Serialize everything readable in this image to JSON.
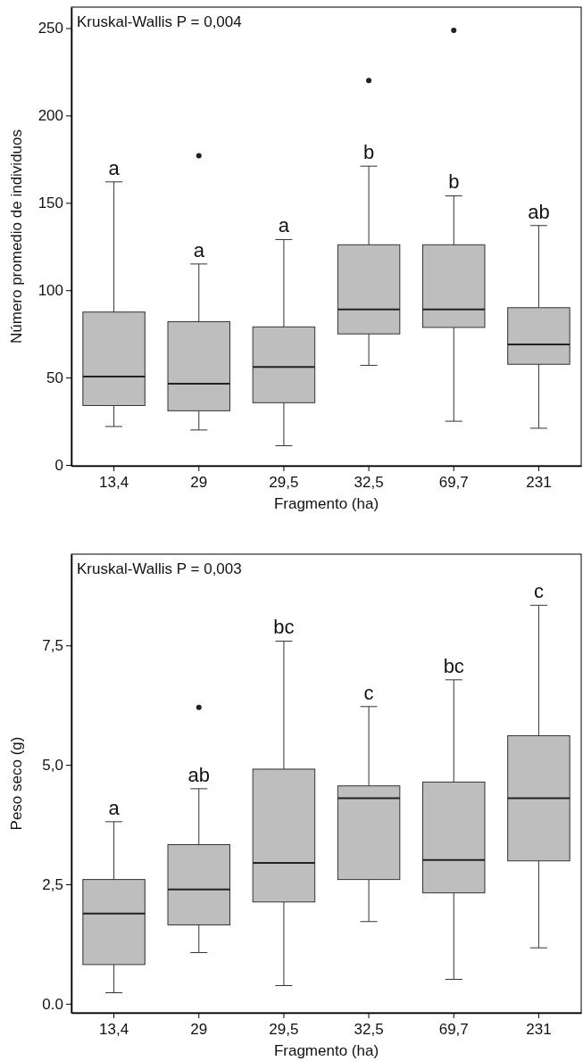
{
  "chart_data": [
    {
      "type": "box",
      "xlabel": "Fragmento (ha)",
      "ylabel": "Número promedio de individuos",
      "categories": [
        "13,4",
        "29",
        "29,5",
        "32,5",
        "69,7",
        "231"
      ],
      "color": "#bebebe",
      "ylim": [
        -0.5,
        262
      ],
      "yticks": [
        0,
        50,
        100,
        150,
        200,
        250
      ],
      "grid": false,
      "boxes": [
        {
          "low": 22,
          "q1": 34,
          "median": 50.6,
          "q3": 87.5,
          "high": 162
        },
        {
          "low": 20,
          "q1": 31,
          "median": 46.5,
          "q3": 82,
          "high": 115,
          "outliers": [
            177
          ]
        },
        {
          "low": 11,
          "q1": 35.6,
          "median": 56,
          "q3": 79,
          "high": 129
        },
        {
          "low": 57,
          "q1": 75,
          "median": 89,
          "q3": 126,
          "high": 171,
          "outliers": [
            220
          ]
        },
        {
          "low": 25,
          "q1": 78.7,
          "median": 89,
          "q3": 126,
          "high": 154,
          "outliers": [
            248.7
          ]
        },
        {
          "low": 21,
          "q1": 57.6,
          "median": 69,
          "q3": 90,
          "high": 137
        }
      ],
      "annotations": [
        "Kruskal-Wallis P = 0,004",
        "a",
        "a",
        "a",
        "b",
        "b",
        "ab"
      ]
    },
    {
      "type": "box",
      "xlabel": "Fragmento (ha)",
      "ylabel": "Peso seco (g)",
      "categories": [
        "13,4",
        "29",
        "29,5",
        "32,5",
        "69,7",
        "231"
      ],
      "color": "#bebebe",
      "ylim": [
        -0.19,
        9.41
      ],
      "yticks": [
        {
          "value": 0,
          "label": "0.0"
        },
        {
          "value": 2.5,
          "label": "2,5"
        },
        {
          "value": 5,
          "label": "5,0"
        },
        {
          "value": 7.5,
          "label": "7,5"
        }
      ],
      "grid": false,
      "boxes": [
        {
          "low": 0.23,
          "q1": 0.82,
          "median": 1.89,
          "q3": 2.6,
          "high": 3.81
        },
        {
          "low": 1.07,
          "q1": 1.65,
          "median": 2.39,
          "q3": 3.33,
          "high": 4.5,
          "outliers": [
            6.2
          ]
        },
        {
          "low": 0.38,
          "q1": 2.13,
          "median": 2.95,
          "q3": 4.91,
          "high": 7.59
        },
        {
          "low": 1.72,
          "q1": 2.6,
          "median": 4.3,
          "q3": 4.56,
          "high": 6.22
        },
        {
          "low": 0.51,
          "q1": 2.32,
          "median": 3.01,
          "q3": 4.64,
          "high": 6.78
        },
        {
          "low": 1.17,
          "q1": 2.99,
          "median": 4.3,
          "q3": 5.61,
          "high": 8.34
        }
      ],
      "annotations": [
        "Kruskal-Wallis P = 0,003",
        "a",
        "ab",
        "bc",
        "c",
        "bc",
        "c"
      ]
    }
  ]
}
